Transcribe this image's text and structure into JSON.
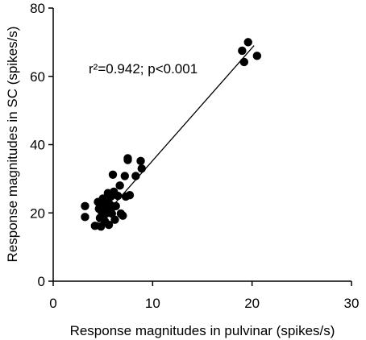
{
  "chart_data": {
    "type": "scatter",
    "title": "",
    "xlabel": "Response magnitudes in pulvinar (spikes/s)",
    "ylabel": "Response magnitudes in SC (spikes/s)",
    "xlim": [
      0,
      30
    ],
    "ylim": [
      0,
      80
    ],
    "xticks": [
      0,
      10,
      20,
      30
    ],
    "yticks": [
      0,
      20,
      40,
      60,
      80
    ],
    "xtick_labels": [
      "0",
      "10",
      "20",
      "30"
    ],
    "ytick_labels": [
      "0",
      "20",
      "40",
      "60",
      "80"
    ],
    "annotation": "r²=0.942; p<0.001",
    "grid": false,
    "fit_line": {
      "x": [
        4.0,
        20.2
      ],
      "y": [
        15.5,
        69.0
      ]
    },
    "points": [
      {
        "x": 3.2,
        "y": 22.0
      },
      {
        "x": 3.2,
        "y": 18.8
      },
      {
        "x": 4.2,
        "y": 16.2
      },
      {
        "x": 4.5,
        "y": 23.2
      },
      {
        "x": 4.6,
        "y": 21.2
      },
      {
        "x": 4.7,
        "y": 18.5
      },
      {
        "x": 4.8,
        "y": 16.0
      },
      {
        "x": 4.9,
        "y": 20.2
      },
      {
        "x": 5.0,
        "y": 24.2
      },
      {
        "x": 5.0,
        "y": 22.2
      },
      {
        "x": 5.1,
        "y": 19.2
      },
      {
        "x": 5.2,
        "y": 17.5
      },
      {
        "x": 5.3,
        "y": 21.0
      },
      {
        "x": 5.4,
        "y": 23.0
      },
      {
        "x": 5.5,
        "y": 25.8
      },
      {
        "x": 5.5,
        "y": 20.0
      },
      {
        "x": 5.6,
        "y": 16.5
      },
      {
        "x": 5.7,
        "y": 22.5
      },
      {
        "x": 5.8,
        "y": 24.8
      },
      {
        "x": 5.9,
        "y": 19.8
      },
      {
        "x": 6.0,
        "y": 21.8
      },
      {
        "x": 6.0,
        "y": 31.2
      },
      {
        "x": 6.1,
        "y": 26.2
      },
      {
        "x": 6.2,
        "y": 18.0
      },
      {
        "x": 6.3,
        "y": 22.0
      },
      {
        "x": 6.5,
        "y": 25.0
      },
      {
        "x": 6.7,
        "y": 28.0
      },
      {
        "x": 6.8,
        "y": 19.8
      },
      {
        "x": 7.0,
        "y": 19.2
      },
      {
        "x": 7.2,
        "y": 30.8
      },
      {
        "x": 7.3,
        "y": 24.8
      },
      {
        "x": 7.5,
        "y": 36.0
      },
      {
        "x": 7.5,
        "y": 35.5
      },
      {
        "x": 7.7,
        "y": 25.2
      },
      {
        "x": 8.3,
        "y": 30.8
      },
      {
        "x": 8.8,
        "y": 35.2
      },
      {
        "x": 8.9,
        "y": 33.0
      },
      {
        "x": 19.0,
        "y": 67.5
      },
      {
        "x": 19.2,
        "y": 64.2
      },
      {
        "x": 19.6,
        "y": 70.0
      },
      {
        "x": 20.5,
        "y": 66.0
      }
    ]
  }
}
